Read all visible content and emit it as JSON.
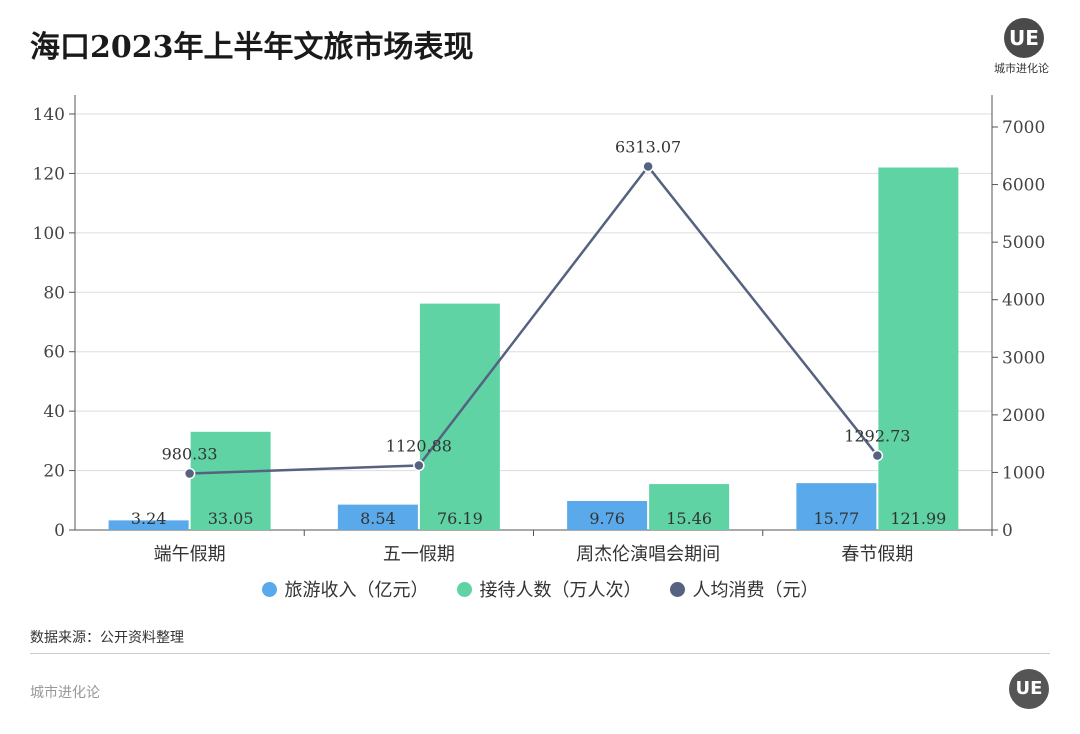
{
  "title": "海口2023年上半年文旅市场表现",
  "brand": {
    "logo": "UE",
    "name": "城市进化论"
  },
  "source": "数据来源：公开资料整理",
  "footer": "城市进化论",
  "colors": {
    "revenue": "#5aa9ea",
    "visitors": "#5fd3a4",
    "spend": "#56627f"
  },
  "chart_data": {
    "type": "bar+line",
    "title": "海口2023年上半年文旅市场表现",
    "categories": [
      "端午假期",
      "五一假期",
      "周杰伦演唱会期间",
      "春节假期"
    ],
    "series": [
      {
        "name": "旅游收入（亿元）",
        "type": "bar",
        "axis": "left",
        "values": [
          3.24,
          8.54,
          9.76,
          15.77
        ]
      },
      {
        "name": "接待人数（万人次）",
        "type": "bar",
        "axis": "left",
        "values": [
          33.05,
          76.19,
          15.46,
          121.99
        ]
      },
      {
        "name": "人均消费（元）",
        "type": "line",
        "axis": "right",
        "values": [
          980.33,
          1120.88,
          6313.07,
          1292.73
        ]
      }
    ],
    "y_left": {
      "ticks": [
        0,
        20,
        40,
        60,
        80,
        100,
        120,
        140
      ],
      "range": [
        0,
        140
      ]
    },
    "y_right": {
      "ticks": [
        0,
        1000,
        2000,
        3000,
        4000,
        5000,
        6000,
        7000
      ],
      "range": [
        0,
        7000
      ]
    },
    "legend": "bottom",
    "grid": true
  }
}
